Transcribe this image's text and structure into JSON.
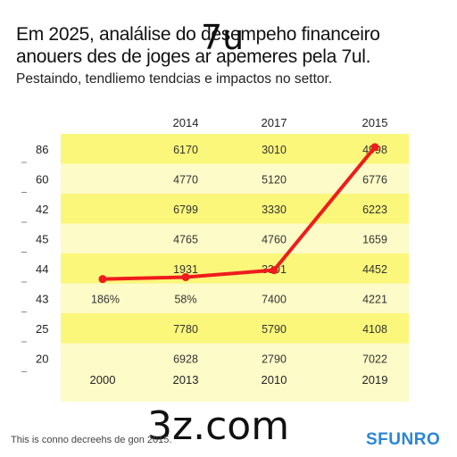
{
  "title_lines": [
    "Em 2025, analálise do desempeho financeiro",
    "anouers des de joges ar apemeres pela 7ul."
  ],
  "subtitle": "Pestaindo, tendliemo tendcias e impactos no settor.",
  "watermarks": {
    "top": "7u",
    "bottom": "3z.com"
  },
  "footnote": "This is conno decreehs de gon 2015.",
  "brand": "SFUNRO",
  "colors": {
    "band": "#fbf77a",
    "band_light": "#fdfbc8",
    "line": "#ee1c1c"
  },
  "chart_data": {
    "type": "line",
    "grid": false,
    "column_headers": [
      "2014",
      "2017",
      "2015"
    ],
    "row_labels": [
      "86",
      "60",
      "42",
      "45",
      "44",
      "43",
      "25",
      "20"
    ],
    "cells": [
      [
        "6170",
        "3010",
        "4998"
      ],
      [
        "4770",
        "5120",
        "6776"
      ],
      [
        "6799",
        "3330",
        "6223"
      ],
      [
        "4765",
        "4760",
        "1659"
      ],
      [
        "1931",
        "3301",
        "4452"
      ],
      [
        "58%",
        "7400",
        "4221"
      ],
      [
        "7780",
        "5790",
        "4108"
      ],
      [
        "6928",
        "2790",
        "7022"
      ]
    ],
    "extra_cells": [
      "186%"
    ],
    "x_categories": [
      "2000",
      "2013",
      "2010",
      "2019"
    ],
    "series": [
      {
        "values": [
          44.2,
          44.8,
          46.9,
          84.0
        ]
      }
    ],
    "ylim": [
      18,
      88
    ]
  }
}
